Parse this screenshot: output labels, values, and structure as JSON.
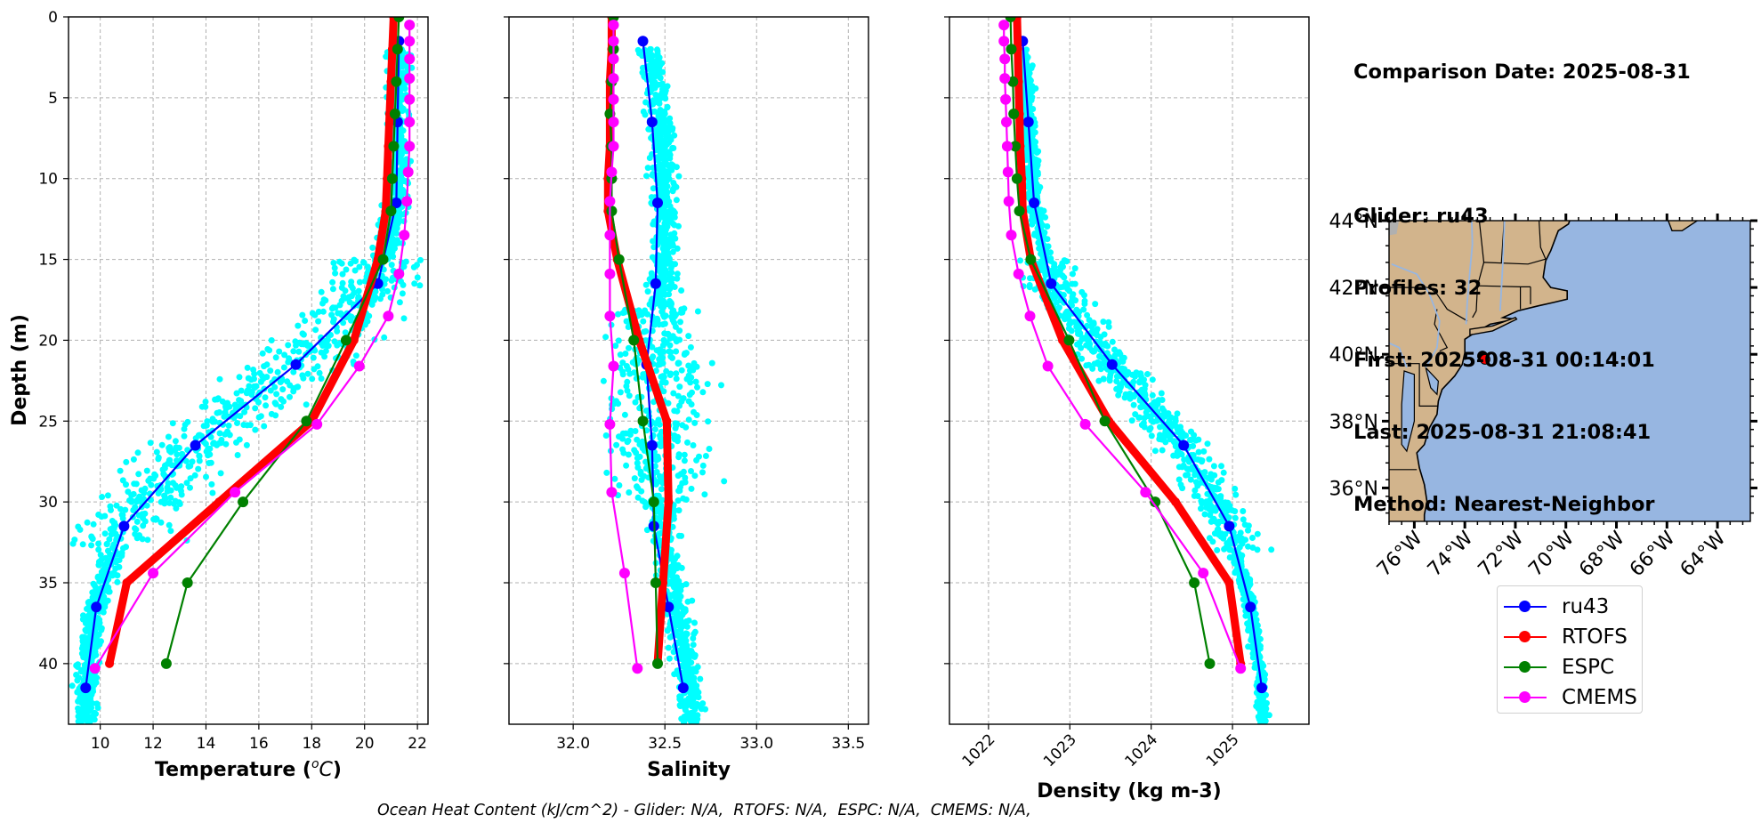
{
  "info": {
    "comparison_date": "Comparison Date: 2025-08-31",
    "glider": "Glider: ru43",
    "profiles": "Profiles: 32",
    "first": "First: 2025-08-31 00:14:01",
    "last": "Last: 2025-08-31 21:08:41",
    "method": "Method: Nearest-Neighbor"
  },
  "footer": {
    "ohc_text": "Ocean Heat Content (kJ/cm^2) - Glider: N/A,  RTOFS: N/A,  ESPC: N/A,  CMEMS: N/A,"
  },
  "legend": {
    "items": [
      {
        "label": "ru43",
        "color": "#0000ff"
      },
      {
        "label": "RTOFS",
        "color": "#ff0000"
      },
      {
        "label": "ESPC",
        "color": "#008000"
      },
      {
        "label": "CMEMS",
        "color": "#ff00ff"
      }
    ]
  },
  "colors": {
    "glider_scatter": "#00ffff",
    "ru43": "#0000ff",
    "RTOFS": "#ff0000",
    "ESPC": "#008000",
    "CMEMS": "#ff00ff",
    "land": "#d2b48c",
    "ocean": "#97b6e1",
    "track": "#ff0000"
  },
  "chart_data": [
    {
      "type": "line",
      "title": "",
      "xlabel": "Temperature (°C)",
      "ylabel": "Depth (m)",
      "xlim": [
        8.8,
        22.4
      ],
      "ylim": [
        43.75,
        0
      ],
      "xticks": [
        10,
        12,
        14,
        16,
        18,
        20,
        22
      ],
      "yticks": [
        0,
        5,
        10,
        15,
        20,
        25,
        30,
        35,
        40
      ],
      "grid": true,
      "series": [
        {
          "name": "ru43",
          "depth": [
            1.5,
            6.5,
            11.5,
            16.5,
            21.5,
            26.5,
            31.5,
            36.5,
            41.5
          ],
          "values": [
            21.3,
            21.25,
            21.2,
            20.5,
            17.4,
            13.6,
            10.9,
            9.85,
            9.45
          ]
        },
        {
          "name": "RTOFS",
          "depth": [
            0,
            2,
            4,
            6,
            8,
            10,
            12,
            15,
            20,
            25,
            30,
            35,
            40
          ],
          "values": [
            21.1,
            21.05,
            21.0,
            20.95,
            20.9,
            20.85,
            20.8,
            20.5,
            19.6,
            18.0,
            14.5,
            11.0,
            10.35
          ]
        },
        {
          "name": "ESPC",
          "depth": [
            0,
            2,
            4,
            6,
            8,
            10,
            12,
            15,
            20,
            25,
            30,
            35,
            40
          ],
          "values": [
            21.3,
            21.25,
            21.2,
            21.15,
            21.1,
            21.05,
            21.0,
            20.7,
            19.3,
            17.8,
            15.4,
            13.3,
            12.5
          ]
        },
        {
          "name": "CMEMS",
          "depth": [
            0.5,
            1.5,
            2.6,
            3.8,
            5.1,
            6.5,
            8.0,
            9.6,
            11.4,
            13.5,
            15.9,
            18.5,
            21.6,
            25.2,
            29.4,
            34.4,
            40.3
          ],
          "values": [
            21.7,
            21.7,
            21.7,
            21.7,
            21.7,
            21.7,
            21.7,
            21.65,
            21.6,
            21.5,
            21.3,
            20.9,
            19.8,
            18.2,
            15.1,
            12.0,
            9.8
          ]
        }
      ],
      "scatter": {
        "name": "glider profiles",
        "note": "dense cyan glider observations spanning 9.3–21.6 °C, 0–44 m"
      }
    },
    {
      "type": "line",
      "title": "",
      "xlabel": "Salinity",
      "ylabel": "",
      "xlim": [
        31.65,
        33.61
      ],
      "ylim": [
        43.75,
        0
      ],
      "xticks": [
        32.0,
        32.5,
        33.0,
        33.5
      ],
      "xtick_labels": [
        "32.0",
        "32.5",
        "33.0",
        "33.5"
      ],
      "yticks": [
        0,
        5,
        10,
        15,
        20,
        25,
        30,
        35,
        40
      ],
      "grid": true,
      "series": [
        {
          "name": "ru43",
          "depth": [
            1.5,
            6.5,
            11.5,
            16.5,
            21.5,
            26.5,
            31.5,
            36.5,
            41.5
          ],
          "values": [
            32.38,
            32.43,
            32.46,
            32.45,
            32.4,
            32.43,
            32.44,
            32.52,
            32.6
          ]
        },
        {
          "name": "RTOFS",
          "depth": [
            0,
            2,
            4,
            6,
            8,
            10,
            12,
            15,
            20,
            25,
            30,
            35,
            40
          ],
          "values": [
            32.21,
            32.21,
            32.2,
            32.2,
            32.2,
            32.19,
            32.19,
            32.24,
            32.36,
            32.51,
            32.52,
            32.49,
            32.46
          ]
        },
        {
          "name": "ESPC",
          "depth": [
            0,
            2,
            4,
            6,
            8,
            10,
            12,
            15,
            20,
            25,
            30,
            35,
            40
          ],
          "values": [
            32.22,
            32.22,
            32.21,
            32.2,
            32.21,
            32.21,
            32.21,
            32.25,
            32.33,
            32.38,
            32.44,
            32.45,
            32.46
          ]
        },
        {
          "name": "CMEMS",
          "depth": [
            0.5,
            1.5,
            2.6,
            3.8,
            5.1,
            6.5,
            8.0,
            9.6,
            11.4,
            13.5,
            15.9,
            18.5,
            21.6,
            25.2,
            29.4,
            34.4,
            40.3
          ],
          "values": [
            32.22,
            32.22,
            32.22,
            32.22,
            32.22,
            32.22,
            32.22,
            32.21,
            32.2,
            32.2,
            32.2,
            32.2,
            32.22,
            32.2,
            32.21,
            32.28,
            32.35
          ]
        }
      ],
      "scatter": {
        "name": "glider profiles",
        "note": "dense cyan glider observations spanning 31.9–33.4 PSU, 0–44 m"
      }
    },
    {
      "type": "line",
      "title": "",
      "xlabel": "Density (kg m-3)",
      "ylabel": "",
      "xlim": [
        1021.52,
        1025.94
      ],
      "ylim": [
        43.75,
        0
      ],
      "xticks": [
        1022,
        1023,
        1024,
        1025
      ],
      "yticks": [
        0,
        5,
        10,
        15,
        20,
        25,
        30,
        35,
        40
      ],
      "grid": true,
      "series": [
        {
          "name": "ru43",
          "depth": [
            1.5,
            6.5,
            11.5,
            16.5,
            21.5,
            26.5,
            31.5,
            36.5,
            41.5
          ],
          "values": [
            1022.42,
            1022.49,
            1022.56,
            1022.77,
            1023.52,
            1024.4,
            1024.96,
            1025.22,
            1025.36
          ]
        },
        {
          "name": "RTOFS",
          "depth": [
            0,
            2,
            4,
            6,
            8,
            10,
            12,
            15,
            20,
            25,
            30,
            35,
            40
          ],
          "values": [
            1022.35,
            1022.36,
            1022.37,
            1022.38,
            1022.39,
            1022.41,
            1022.42,
            1022.52,
            1022.91,
            1023.48,
            1024.3,
            1024.96,
            1025.1
          ]
        },
        {
          "name": "ESPC",
          "depth": [
            0,
            2,
            4,
            6,
            8,
            10,
            12,
            15,
            20,
            25,
            30,
            35,
            40
          ],
          "values": [
            1022.27,
            1022.28,
            1022.3,
            1022.31,
            1022.33,
            1022.35,
            1022.38,
            1022.52,
            1022.99,
            1023.43,
            1024.05,
            1024.53,
            1024.72
          ]
        },
        {
          "name": "CMEMS",
          "depth": [
            0.5,
            1.5,
            2.6,
            3.8,
            5.1,
            6.5,
            8.0,
            9.6,
            11.4,
            13.5,
            15.9,
            18.5,
            21.6,
            25.2,
            29.4,
            34.4,
            40.3
          ],
          "values": [
            1022.19,
            1022.19,
            1022.2,
            1022.2,
            1022.21,
            1022.22,
            1022.23,
            1022.24,
            1022.25,
            1022.28,
            1022.37,
            1022.51,
            1022.73,
            1023.19,
            1023.93,
            1024.64,
            1025.1
          ]
        }
      ],
      "scatter": {
        "name": "glider profiles",
        "note": "dense cyan glider observations spanning 1022.1–1025.5 kg m-3, 0–44 m"
      }
    },
    {
      "type": "scatter",
      "title": "",
      "xlabel": "",
      "ylabel": "",
      "xlim": [
        -77.0,
        -62.7
      ],
      "ylim": [
        35.0,
        44.0
      ],
      "xticks": [
        -76,
        -74,
        -72,
        -70,
        -68,
        -66,
        -64
      ],
      "xtick_labels": [
        "76°W",
        "74°W",
        "72°W",
        "70°W",
        "68°W",
        "66°W",
        "64°W"
      ],
      "yticks": [
        36,
        38,
        40,
        42,
        44
      ],
      "ytick_labels": [
        "36°N",
        "38°N",
        "40°N",
        "42°N",
        "44°N"
      ],
      "points": [
        {
          "name": "glider track",
          "lon": -73.3,
          "lat": 39.95,
          "color": "#000000"
        },
        {
          "name": "glider latest",
          "lon": -73.2,
          "lat": 39.85,
          "color": "#ff0000"
        }
      ]
    }
  ]
}
